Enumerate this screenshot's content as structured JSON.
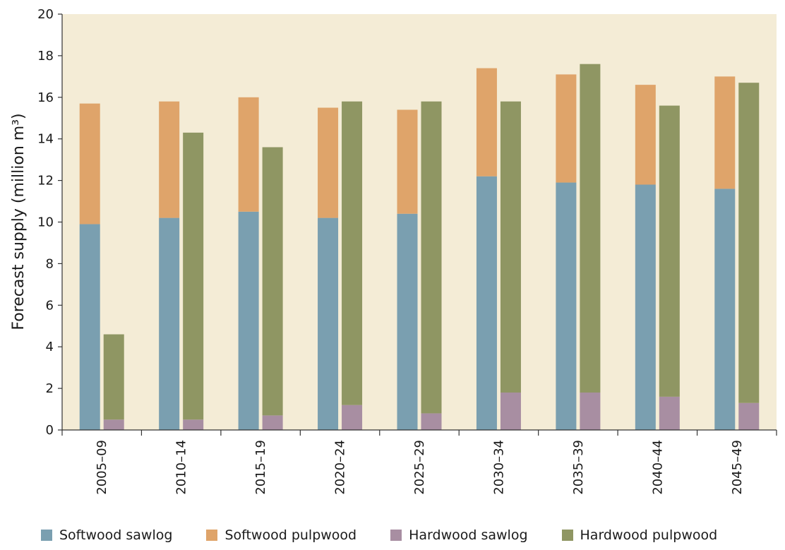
{
  "chart_data": {
    "type": "bar",
    "ylabel": "Forecast supply (million m³)",
    "xlabel": "",
    "ylim": [
      0,
      20
    ],
    "yticks": [
      "0",
      "2",
      "4",
      "6",
      "8",
      "10",
      "12",
      "14",
      "16",
      "18",
      "20"
    ],
    "categories": [
      "2005–09",
      "2010–14",
      "2015–19",
      "2020–24",
      "2025–29",
      "2030–34",
      "2035–39",
      "2040–44",
      "2045–49"
    ],
    "stack_groups": [
      {
        "series": [
          {
            "name": "Softwood sawlog",
            "color": "#7a9fb0",
            "values": [
              9.9,
              10.2,
              10.5,
              10.2,
              10.4,
              12.2,
              11.9,
              11.8,
              11.6
            ]
          },
          {
            "name": "Softwood pulpwood",
            "color": "#dfa46a",
            "values": [
              5.8,
              5.6,
              5.5,
              5.3,
              5.0,
              5.2,
              5.2,
              4.8,
              5.4
            ]
          }
        ]
      },
      {
        "series": [
          {
            "name": "Hardwood sawlog",
            "color": "#a88ea2",
            "values": [
              0.5,
              0.5,
              0.7,
              1.2,
              0.8,
              1.8,
              1.8,
              1.6,
              1.3
            ]
          },
          {
            "name": "Hardwood pulpwood",
            "color": "#8f9663",
            "values": [
              4.1,
              13.8,
              12.9,
              14.6,
              15.0,
              14.0,
              15.8,
              14.0,
              15.4
            ]
          }
        ]
      }
    ],
    "plot_background": "#f4ecd6",
    "grid": false,
    "legend_position": "bottom"
  },
  "legend": [
    {
      "label": "Softwood sawlog",
      "color": "#7a9fb0"
    },
    {
      "label": "Softwood pulpwood",
      "color": "#dfa46a"
    },
    {
      "label": "Hardwood sawlog",
      "color": "#a88ea2"
    },
    {
      "label": "Hardwood pulpwood",
      "color": "#8f9663"
    }
  ]
}
